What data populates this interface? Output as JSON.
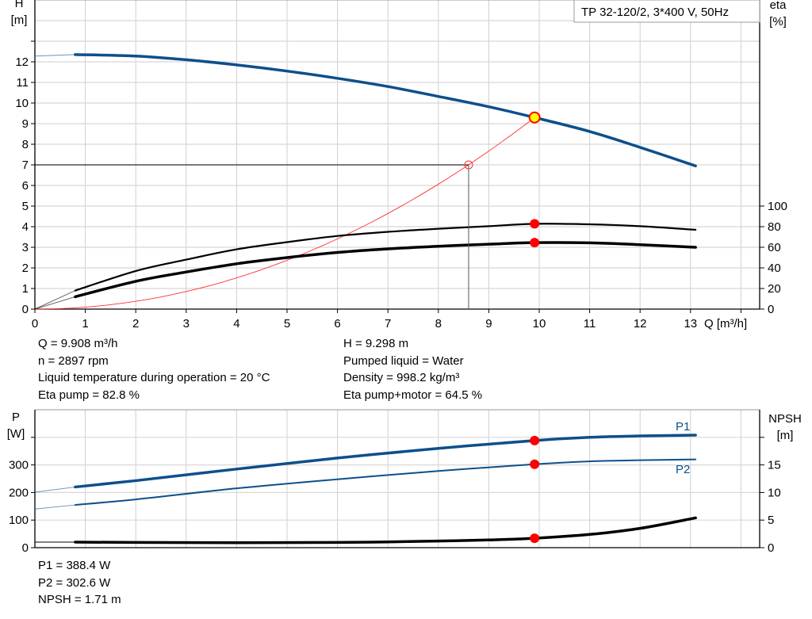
{
  "chart_data": [
    {
      "type": "line",
      "title": "TP 32-120/2, 3*400 V, 50Hz",
      "xlabel": "Q [m³/h]",
      "ylabel": "H\n[m]",
      "ylabel_top": "H",
      "ylabel_unit": "[m]",
      "y2label_top": "eta",
      "y2label_unit": "[%]",
      "xlim": [
        0,
        14.35
      ],
      "ylim": [
        0,
        15
      ],
      "y2lim": [
        0,
        300
      ],
      "grid": true,
      "x_ticks": [
        0,
        1,
        2,
        3,
        4,
        5,
        6,
        7,
        8,
        9,
        10,
        11,
        12,
        13
      ],
      "y_ticks": [
        0,
        1,
        2,
        3,
        4,
        5,
        6,
        7,
        8,
        9,
        10,
        11,
        12
      ],
      "y2_ticks": [
        0,
        20,
        40,
        60,
        80,
        100
      ],
      "series": [
        {
          "id": "H",
          "axis": "left",
          "color": "#0d4f8b",
          "x": [
            0.8,
            2,
            3,
            4,
            5,
            6,
            7,
            8,
            9,
            9.908,
            11,
            12,
            13.1
          ],
          "y": [
            12.35,
            12.28,
            12.1,
            11.85,
            11.55,
            11.2,
            10.8,
            10.32,
            9.82,
            9.298,
            8.62,
            7.85,
            6.95
          ],
          "extrapolated_from": [
            0,
            12.28
          ]
        },
        {
          "id": "eta_pump",
          "axis": "right",
          "color": "#000000",
          "x": [
            0.8,
            2,
            3,
            4,
            5,
            6,
            7,
            8,
            9,
            9.908,
            11,
            12,
            13.1
          ],
          "y": [
            18,
            37,
            48,
            58,
            65,
            71,
            75,
            78,
            80.5,
            82.8,
            82.3,
            80.5,
            77
          ],
          "extrapolated_from": [
            0,
            0
          ]
        },
        {
          "id": "eta_pump_motor",
          "axis": "right",
          "color": "#000000",
          "x": [
            0.8,
            2,
            3,
            4,
            5,
            6,
            7,
            8,
            9,
            9.908,
            11,
            12,
            13.1
          ],
          "y": [
            12,
            27,
            36,
            44,
            50,
            55,
            58.5,
            61,
            63,
            64.5,
            64.3,
            62.5,
            60
          ],
          "extrapolated_from": [
            0,
            0
          ]
        },
        {
          "id": "system",
          "axis": "left",
          "color": "#ff3030",
          "k": 0.0947,
          "x_max": 9.908
        }
      ],
      "duty_point": {
        "Q": 9.908,
        "H": 9.298,
        "eta_pump": 82.8,
        "eta_pump_motor": 64.5
      },
      "reference_point": {
        "Q": 8.6,
        "H": 7
      }
    },
    {
      "type": "line",
      "ylabel_top": "P",
      "ylabel_unit": "[W]",
      "y2label_top": "NPSH",
      "y2label_unit": "[m]",
      "xlim": [
        0,
        14.35
      ],
      "ylim": [
        0,
        500
      ],
      "y2lim": [
        0,
        25
      ],
      "grid": true,
      "y_ticks": [
        0,
        100,
        200,
        300
      ],
      "y2_ticks": [
        0,
        5,
        10,
        15
      ],
      "series": [
        {
          "id": "P1",
          "name": "P1",
          "axis": "left",
          "color": "#0d4f8b",
          "x": [
            0.8,
            2,
            4,
            6,
            8,
            9.908,
            11,
            12,
            13.1
          ],
          "y": [
            220,
            243,
            285,
            325,
            360,
            388.4,
            400,
            405,
            408
          ],
          "extrapolated_from": [
            0,
            201
          ]
        },
        {
          "id": "P2",
          "name": "P2",
          "axis": "left",
          "color": "#0d4f8b",
          "x": [
            0.8,
            2,
            4,
            6,
            8,
            9.908,
            11,
            12,
            13.1
          ],
          "y": [
            155,
            175,
            215,
            248,
            278,
            302.6,
            313,
            317,
            320
          ],
          "extrapolated_from": [
            0,
            140
          ]
        },
        {
          "id": "NPSH",
          "axis": "right",
          "color": "#000000",
          "x": [
            0.8,
            2,
            4,
            6,
            7,
            8,
            9,
            9.908,
            11,
            12,
            13.1
          ],
          "y": [
            1.0,
            0.95,
            0.9,
            0.95,
            1.05,
            1.2,
            1.4,
            1.71,
            2.4,
            3.5,
            5.4
          ],
          "extrapolated_from": [
            0,
            1.0
          ]
        }
      ],
      "duty_point": {
        "Q": 9.908,
        "P1": 388.4,
        "P2": 302.6,
        "NPSH": 1.71
      }
    }
  ],
  "info_top_left": [
    "Q = 9.908 m³/h",
    "n = 2897 rpm",
    "Liquid temperature during operation = 20 °C",
    "Eta pump = 82.8 %"
  ],
  "info_top_right": [
    "H = 9.298 m",
    "Pumped liquid = Water",
    "Density = 998.2 kg/m³",
    "Eta pump+motor = 64.5 %"
  ],
  "info_bottom": [
    "P1 = 388.4 W",
    "P2 = 302.6 W",
    "NPSH = 1.71 m"
  ],
  "colors": {
    "curve_blue": "#0d4f8b",
    "marker_red": "#ff0000",
    "duty_fill": "#ffff00",
    "grid": "#d0d0d0"
  }
}
